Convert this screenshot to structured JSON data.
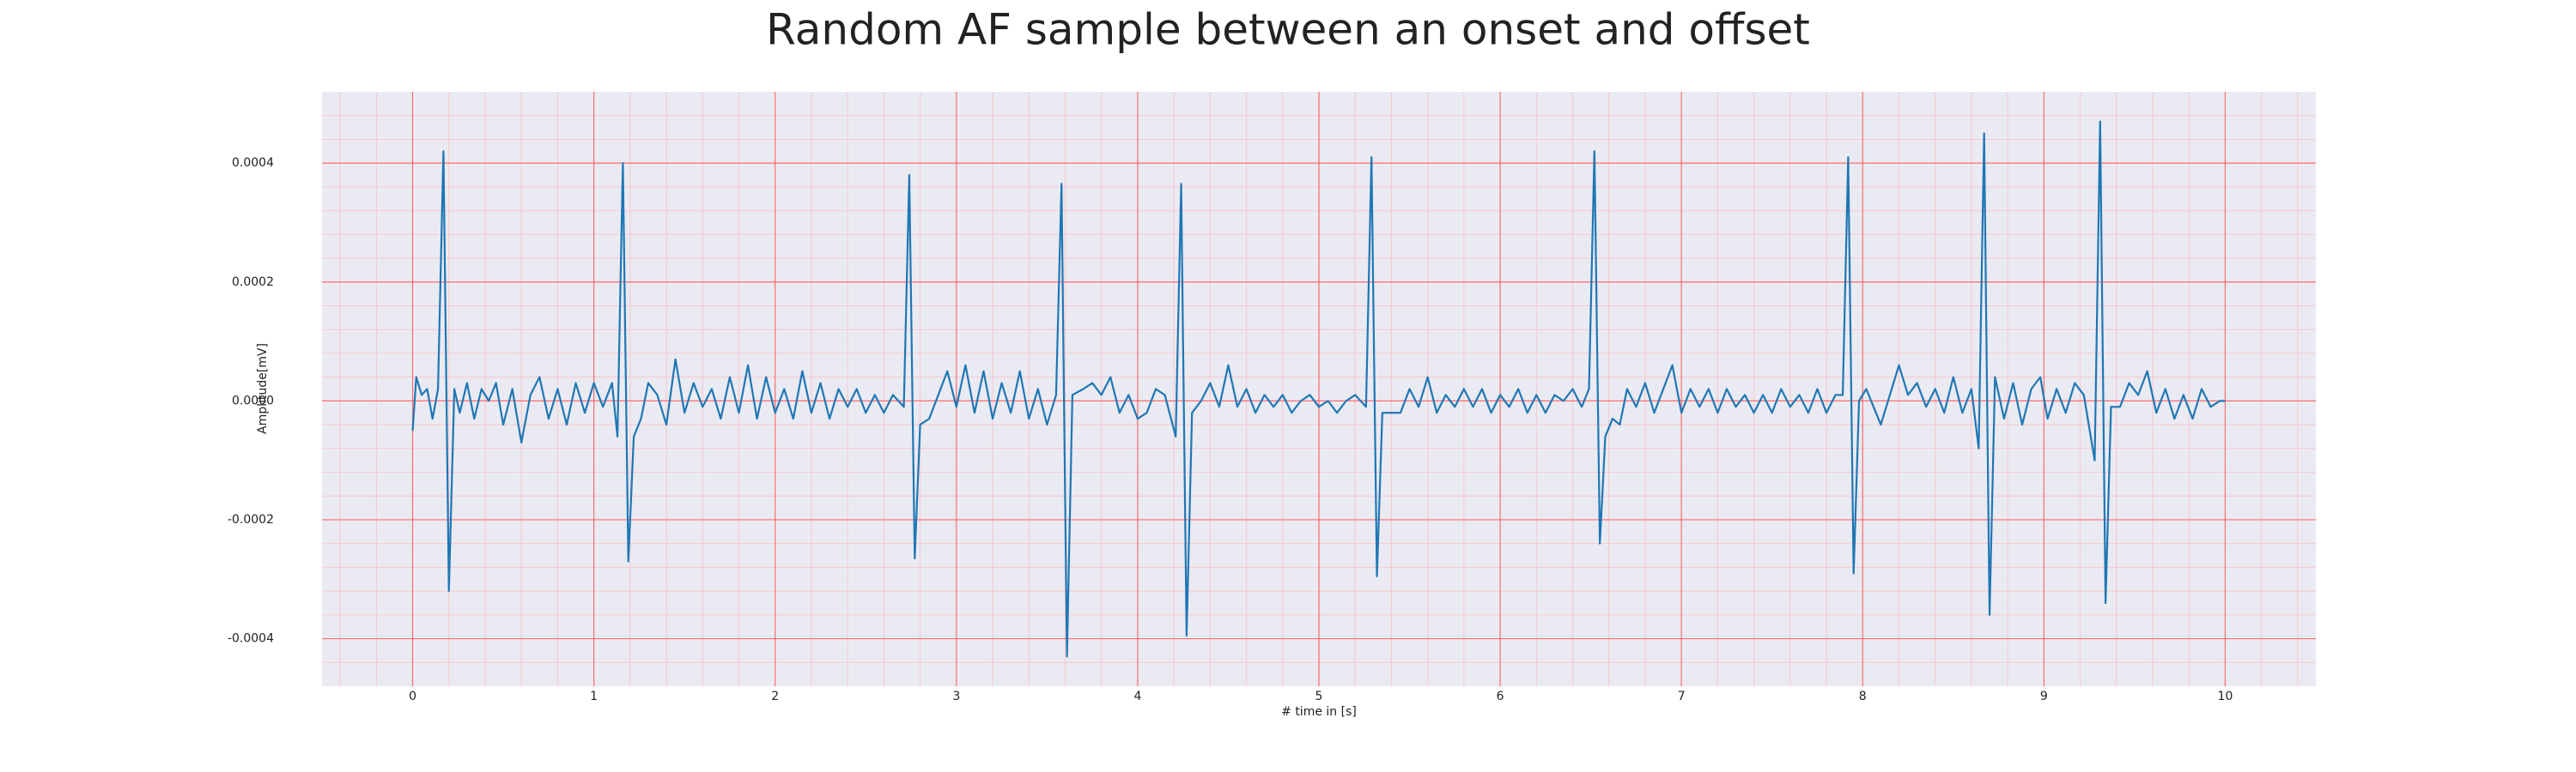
{
  "chart_data": {
    "type": "line",
    "title": "Random AF sample between an onset and offset",
    "xlabel": "# time in [s]",
    "ylabel": "Amplitude[mV]",
    "color": "#1f77b4",
    "grid": true,
    "minor_grid": true,
    "xlim": [
      -0.5,
      10.5
    ],
    "ylim": [
      -0.00048,
      0.00052
    ],
    "xticks": [
      0,
      1,
      2,
      3,
      4,
      5,
      6,
      7,
      8,
      9,
      10
    ],
    "yticks": [
      {
        "value": -0.0004,
        "label": "-0.0004"
      },
      {
        "value": -0.0002,
        "label": "-0.0002"
      },
      {
        "value": 0,
        "label": "0.0000"
      },
      {
        "value": 0.0002,
        "label": "0.0002"
      },
      {
        "value": 0.0004,
        "label": "0.0004"
      }
    ],
    "x": [
      0.0,
      0.02,
      0.05,
      0.08,
      0.11,
      0.14,
      0.17,
      0.2,
      0.23,
      0.26,
      0.3,
      0.34,
      0.38,
      0.42,
      0.46,
      0.5,
      0.55,
      0.6,
      0.65,
      0.7,
      0.75,
      0.8,
      0.85,
      0.9,
      0.95,
      1.0,
      1.05,
      1.1,
      1.13,
      1.16,
      1.19,
      1.22,
      1.26,
      1.3,
      1.35,
      1.4,
      1.45,
      1.5,
      1.55,
      1.6,
      1.65,
      1.7,
      1.75,
      1.8,
      1.85,
      1.9,
      1.95,
      2.0,
      2.05,
      2.1,
      2.15,
      2.2,
      2.25,
      2.3,
      2.35,
      2.4,
      2.45,
      2.5,
      2.55,
      2.6,
      2.65,
      2.71,
      2.74,
      2.77,
      2.8,
      2.85,
      2.9,
      2.95,
      3.0,
      3.05,
      3.1,
      3.15,
      3.2,
      3.25,
      3.3,
      3.35,
      3.4,
      3.45,
      3.5,
      3.55,
      3.58,
      3.61,
      3.64,
      3.7,
      3.75,
      3.8,
      3.85,
      3.9,
      3.95,
      4.0,
      4.05,
      4.1,
      4.15,
      4.21,
      4.24,
      4.27,
      4.3,
      4.35,
      4.4,
      4.45,
      4.5,
      4.55,
      4.6,
      4.65,
      4.7,
      4.75,
      4.8,
      4.85,
      4.9,
      4.95,
      5.0,
      5.05,
      5.1,
      5.15,
      5.2,
      5.26,
      5.29,
      5.32,
      5.35,
      5.4,
      5.45,
      5.5,
      5.55,
      5.6,
      5.65,
      5.7,
      5.75,
      5.8,
      5.85,
      5.9,
      5.95,
      6.0,
      6.05,
      6.1,
      6.15,
      6.2,
      6.25,
      6.3,
      6.35,
      6.4,
      6.45,
      6.49,
      6.52,
      6.55,
      6.58,
      6.62,
      6.66,
      6.7,
      6.75,
      6.8,
      6.85,
      6.9,
      6.95,
      7.0,
      7.05,
      7.1,
      7.15,
      7.2,
      7.25,
      7.3,
      7.35,
      7.4,
      7.45,
      7.5,
      7.55,
      7.6,
      7.65,
      7.7,
      7.75,
      7.8,
      7.85,
      7.89,
      7.92,
      7.95,
      7.98,
      8.02,
      8.06,
      8.1,
      8.15,
      8.2,
      8.25,
      8.3,
      8.35,
      8.4,
      8.45,
      8.5,
      8.55,
      8.6,
      8.64,
      8.67,
      8.7,
      8.73,
      8.78,
      8.83,
      8.88,
      8.93,
      8.98,
      9.02,
      9.07,
      9.12,
      9.17,
      9.22,
      9.28,
      9.31,
      9.34,
      9.37,
      9.42,
      9.47,
      9.52,
      9.57,
      9.62,
      9.67,
      9.72,
      9.77,
      9.82,
      9.87,
      9.92,
      9.97,
      10.0
    ],
    "values": [
      -5e-05,
      4e-05,
      1e-05,
      2e-05,
      -3e-05,
      2e-05,
      0.00042,
      -0.00032,
      2e-05,
      -2e-05,
      3e-05,
      -3e-05,
      2e-05,
      0,
      3e-05,
      -4e-05,
      2e-05,
      -7e-05,
      1e-05,
      4e-05,
      -3e-05,
      2e-05,
      -4e-05,
      3e-05,
      -2e-05,
      3e-05,
      -1e-05,
      3e-05,
      -6e-05,
      0.0004,
      -0.00027,
      -6e-05,
      -3e-05,
      3e-05,
      1e-05,
      -4e-05,
      7e-05,
      -2e-05,
      3e-05,
      -1e-05,
      2e-05,
      -3e-05,
      4e-05,
      -2e-05,
      6e-05,
      -3e-05,
      4e-05,
      -2e-05,
      2e-05,
      -3e-05,
      5e-05,
      -2e-05,
      3e-05,
      -3e-05,
      2e-05,
      -1e-05,
      2e-05,
      -2e-05,
      1e-05,
      -2e-05,
      1e-05,
      -1e-05,
      0.00038,
      -0.000265,
      -4e-05,
      -3e-05,
      1e-05,
      5e-05,
      -1e-05,
      6e-05,
      -2e-05,
      5e-05,
      -3e-05,
      3e-05,
      -2e-05,
      5e-05,
      -3e-05,
      2e-05,
      -4e-05,
      1e-05,
      0.000365,
      -0.00043,
      1e-05,
      2e-05,
      3e-05,
      1e-05,
      4e-05,
      -2e-05,
      1e-05,
      -3e-05,
      -2e-05,
      2e-05,
      1e-05,
      -6e-05,
      0.000365,
      -0.000395,
      -2e-05,
      0,
      3e-05,
      -1e-05,
      6e-05,
      -1e-05,
      2e-05,
      -2e-05,
      1e-05,
      -1e-05,
      1e-05,
      -2e-05,
      0,
      1e-05,
      -1e-05,
      0,
      -2e-05,
      0,
      1e-05,
      -1e-05,
      0.00041,
      -0.000295,
      -2e-05,
      -2e-05,
      -2e-05,
      2e-05,
      -1e-05,
      4e-05,
      -2e-05,
      1e-05,
      -1e-05,
      2e-05,
      -1e-05,
      2e-05,
      -2e-05,
      1e-05,
      -1e-05,
      2e-05,
      -2e-05,
      1e-05,
      -2e-05,
      1e-05,
      0,
      2e-05,
      -1e-05,
      2e-05,
      0.00042,
      -0.00024,
      -6e-05,
      -3e-05,
      -4e-05,
      2e-05,
      -1e-05,
      3e-05,
      -2e-05,
      2e-05,
      6e-05,
      -2e-05,
      2e-05,
      -1e-05,
      2e-05,
      -2e-05,
      2e-05,
      -1e-05,
      1e-05,
      -2e-05,
      1e-05,
      -2e-05,
      2e-05,
      -1e-05,
      1e-05,
      -2e-05,
      2e-05,
      -2e-05,
      1e-05,
      1e-05,
      0.00041,
      -0.00029,
      0,
      2e-05,
      -1e-05,
      -4e-05,
      1e-05,
      6e-05,
      1e-05,
      3e-05,
      -1e-05,
      2e-05,
      -2e-05,
      4e-05,
      -2e-05,
      2e-05,
      -8e-05,
      0.00045,
      -0.00036,
      4e-05,
      -3e-05,
      3e-05,
      -4e-05,
      2e-05,
      4e-05,
      -3e-05,
      2e-05,
      -2e-05,
      3e-05,
      1e-05,
      -0.0001,
      0.00047,
      -0.00034,
      -1e-05,
      -1e-05,
      3e-05,
      1e-05,
      5e-05,
      -2e-05,
      2e-05,
      -3e-05,
      1e-05,
      -3e-05,
      2e-05,
      -1e-05,
      0,
      0
    ]
  }
}
